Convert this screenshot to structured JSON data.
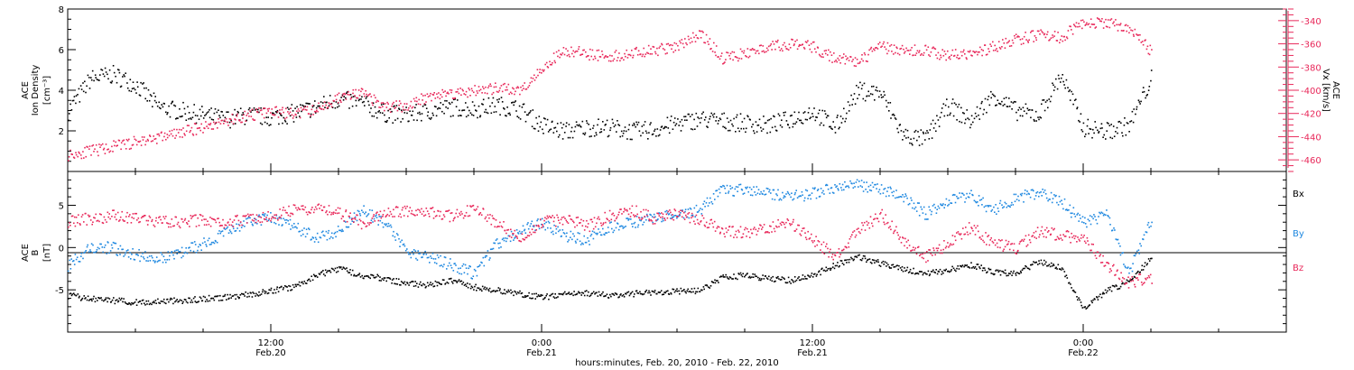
{
  "figure": {
    "xlabel": "hours:minutes, Feb. 20, 2010 - Feb. 22, 2010",
    "x_ticks": [
      {
        "time": "12:00",
        "date": "Feb.20"
      },
      {
        "time": "0:00",
        "date": "Feb.21"
      },
      {
        "time": "12:00",
        "date": "Feb.21"
      },
      {
        "time": "0:00",
        "date": "Feb.22"
      }
    ]
  },
  "colors": {
    "black": "#000000",
    "red": "#e8285a",
    "blue": "#1f88e0"
  },
  "chart_data": [
    {
      "type": "scatter",
      "panel": "top",
      "title": "",
      "xlim": [
        "2010-02-20 03:00",
        "2010-02-22 09:00"
      ],
      "ylabel_left": {
        "line1": "ACE",
        "line2": "Ion Density",
        "unit": "[cm⁻³]"
      },
      "ylabel_right": {
        "line1": "ACE",
        "line2": "Vx [km/s]"
      },
      "ylim_left": [
        0,
        8
      ],
      "ylim_right": [
        -470,
        -330
      ],
      "left_ticks": [
        "2",
        "4",
        "6",
        "8"
      ],
      "right_ticks": [
        "-340",
        "-360",
        "-380",
        "-400",
        "-420",
        "-440",
        "-460"
      ],
      "series": [
        {
          "key": "density",
          "axis": "left",
          "color": "black",
          "x": [
            "2010-02-20 03:00",
            "2010-02-20 04:00",
            "2010-02-20 05:00",
            "2010-02-20 06:00",
            "2010-02-20 07:00",
            "2010-02-20 08:00",
            "2010-02-20 09:00",
            "2010-02-20 10:00",
            "2010-02-20 11:00",
            "2010-02-20 12:00",
            "2010-02-20 13:00",
            "2010-02-20 14:00",
            "2010-02-20 15:00",
            "2010-02-20 16:00",
            "2010-02-20 17:00",
            "2010-02-20 18:00",
            "2010-02-20 19:00",
            "2010-02-20 20:00",
            "2010-02-20 21:00",
            "2010-02-20 22:00",
            "2010-02-20 23:00",
            "2010-02-21 00:00",
            "2010-02-21 01:00",
            "2010-02-21 02:00",
            "2010-02-21 03:00",
            "2010-02-21 04:00",
            "2010-02-21 05:00",
            "2010-02-21 06:00",
            "2010-02-21 07:00",
            "2010-02-21 08:00",
            "2010-02-21 09:00",
            "2010-02-21 10:00",
            "2010-02-21 11:00",
            "2010-02-21 12:00",
            "2010-02-21 13:00",
            "2010-02-21 14:00",
            "2010-02-21 15:00",
            "2010-02-21 16:00",
            "2010-02-21 17:00",
            "2010-02-21 18:00",
            "2010-02-21 19:00",
            "2010-02-21 20:00",
            "2010-02-21 21:00",
            "2010-02-21 22:00",
            "2010-02-21 23:00",
            "2010-02-22 00:00",
            "2010-02-22 01:00",
            "2010-02-22 02:00",
            "2010-02-22 03:00"
          ],
          "y": [
            3.0,
            4.6,
            4.8,
            4.3,
            3.2,
            3.0,
            2.8,
            2.6,
            2.8,
            2.7,
            2.9,
            3.2,
            3.6,
            3.4,
            2.9,
            2.8,
            3.0,
            3.2,
            3.1,
            3.3,
            3.1,
            2.3,
            2.0,
            2.2,
            2.2,
            2.0,
            2.1,
            2.4,
            2.6,
            2.5,
            2.4,
            2.3,
            2.6,
            3.0,
            2.2,
            4.0,
            3.9,
            1.8,
            1.6,
            3.3,
            2.5,
            3.8,
            3.0,
            2.8,
            4.8,
            2.2,
            2.0,
            2.3,
            4.6
          ]
        },
        {
          "key": "vx",
          "axis": "right",
          "color": "red",
          "x": [
            "2010-02-20 03:00",
            "2010-02-20 04:00",
            "2010-02-20 05:00",
            "2010-02-20 06:00",
            "2010-02-20 07:00",
            "2010-02-20 08:00",
            "2010-02-20 09:00",
            "2010-02-20 10:00",
            "2010-02-20 11:00",
            "2010-02-20 12:00",
            "2010-02-20 13:00",
            "2010-02-20 14:00",
            "2010-02-20 15:00",
            "2010-02-20 16:00",
            "2010-02-20 17:00",
            "2010-02-20 18:00",
            "2010-02-20 19:00",
            "2010-02-20 20:00",
            "2010-02-20 21:00",
            "2010-02-20 22:00",
            "2010-02-20 23:00",
            "2010-02-21 00:00",
            "2010-02-21 01:00",
            "2010-02-21 02:00",
            "2010-02-21 03:00",
            "2010-02-21 04:00",
            "2010-02-21 05:00",
            "2010-02-21 06:00",
            "2010-02-21 07:00",
            "2010-02-21 08:00",
            "2010-02-21 09:00",
            "2010-02-21 10:00",
            "2010-02-21 11:00",
            "2010-02-21 12:00",
            "2010-02-21 13:00",
            "2010-02-21 14:00",
            "2010-02-21 15:00",
            "2010-02-21 16:00",
            "2010-02-21 17:00",
            "2010-02-21 18:00",
            "2010-02-21 19:00",
            "2010-02-21 20:00",
            "2010-02-21 21:00",
            "2010-02-21 22:00",
            "2010-02-21 23:00",
            "2010-02-22 00:00",
            "2010-02-22 01:00",
            "2010-02-22 02:00",
            "2010-02-22 03:00"
          ],
          "y": [
            -455,
            -452,
            -448,
            -444,
            -440,
            -436,
            -431,
            -426,
            -421,
            -418,
            -420,
            -416,
            -406,
            -402,
            -414,
            -413,
            -404,
            -402,
            -400,
            -398,
            -400,
            -380,
            -365,
            -368,
            -370,
            -368,
            -365,
            -362,
            -350,
            -372,
            -368,
            -362,
            -360,
            -362,
            -372,
            -375,
            -362,
            -366,
            -365,
            -370,
            -368,
            -362,
            -356,
            -352,
            -354,
            -340,
            -342,
            -346,
            -366
          ]
        }
      ]
    },
    {
      "type": "scatter",
      "panel": "bottom",
      "title": "",
      "xlim": [
        "2010-02-20 03:00",
        "2010-02-22 09:00"
      ],
      "ylabel_left": {
        "line1": "ACE",
        "line2": "B",
        "unit": "[nT]"
      },
      "ylim": [
        -10,
        9
      ],
      "left_ticks": [
        "-5",
        "0",
        "5"
      ],
      "zero_line": true,
      "legend": {
        "placement": "right",
        "entries": [
          "Bx",
          "By",
          "Bz"
        ]
      },
      "series": [
        {
          "key": "bx",
          "name": "Bx",
          "color": "black",
          "x": [
            "2010-02-20 03:00",
            "2010-02-20 04:00",
            "2010-02-20 05:00",
            "2010-02-20 06:00",
            "2010-02-20 07:00",
            "2010-02-20 08:00",
            "2010-02-20 09:00",
            "2010-02-20 10:00",
            "2010-02-20 11:00",
            "2010-02-20 12:00",
            "2010-02-20 13:00",
            "2010-02-20 14:00",
            "2010-02-20 15:00",
            "2010-02-20 16:00",
            "2010-02-20 17:00",
            "2010-02-20 18:00",
            "2010-02-20 19:00",
            "2010-02-20 20:00",
            "2010-02-20 21:00",
            "2010-02-20 22:00",
            "2010-02-20 23:00",
            "2010-02-21 00:00",
            "2010-02-21 01:00",
            "2010-02-21 02:00",
            "2010-02-21 03:00",
            "2010-02-21 04:00",
            "2010-02-21 05:00",
            "2010-02-21 06:00",
            "2010-02-21 07:00",
            "2010-02-21 08:00",
            "2010-02-21 09:00",
            "2010-02-21 10:00",
            "2010-02-21 11:00",
            "2010-02-21 12:00",
            "2010-02-21 13:00",
            "2010-02-21 14:00",
            "2010-02-21 15:00",
            "2010-02-21 16:00",
            "2010-02-21 17:00",
            "2010-02-21 18:00",
            "2010-02-21 19:00",
            "2010-02-21 20:00",
            "2010-02-21 21:00",
            "2010-02-21 22:00",
            "2010-02-21 23:00",
            "2010-02-22 00:00",
            "2010-02-22 01:00",
            "2010-02-22 02:00",
            "2010-02-22 03:00"
          ],
          "y": [
            -5.6,
            -6.0,
            -6.2,
            -6.4,
            -6.3,
            -6.2,
            -6.0,
            -5.8,
            -5.5,
            -5.0,
            -4.6,
            -3.2,
            -2.4,
            -3.2,
            -3.6,
            -4.2,
            -4.4,
            -3.8,
            -4.6,
            -5.0,
            -5.4,
            -5.8,
            -5.5,
            -5.3,
            -5.6,
            -5.4,
            -5.2,
            -5.1,
            -5.0,
            -3.5,
            -3.2,
            -3.6,
            -3.8,
            -3.2,
            -2.0,
            -1.0,
            -1.8,
            -2.5,
            -3.0,
            -2.6,
            -2.0,
            -2.8,
            -3.0,
            -1.6,
            -2.4,
            -7.2,
            -5.0,
            -4.0,
            -1.2
          ]
        },
        {
          "key": "by",
          "name": "By",
          "color": "blue",
          "x": [
            "2010-02-20 03:00",
            "2010-02-20 04:00",
            "2010-02-20 05:00",
            "2010-02-20 06:00",
            "2010-02-20 07:00",
            "2010-02-20 08:00",
            "2010-02-20 09:00",
            "2010-02-20 10:00",
            "2010-02-20 11:00",
            "2010-02-20 12:00",
            "2010-02-20 13:00",
            "2010-02-20 14:00",
            "2010-02-20 15:00",
            "2010-02-20 16:00",
            "2010-02-20 17:00",
            "2010-02-20 18:00",
            "2010-02-20 19:00",
            "2010-02-20 20:00",
            "2010-02-20 21:00",
            "2010-02-20 22:00",
            "2010-02-20 23:00",
            "2010-02-21 00:00",
            "2010-02-21 01:00",
            "2010-02-21 02:00",
            "2010-02-21 03:00",
            "2010-02-21 04:00",
            "2010-02-21 05:00",
            "2010-02-21 06:00",
            "2010-02-21 07:00",
            "2010-02-21 08:00",
            "2010-02-21 09:00",
            "2010-02-21 10:00",
            "2010-02-21 11:00",
            "2010-02-21 12:00",
            "2010-02-21 13:00",
            "2010-02-21 14:00",
            "2010-02-21 15:00",
            "2010-02-21 16:00",
            "2010-02-21 17:00",
            "2010-02-21 18:00",
            "2010-02-21 19:00",
            "2010-02-21 20:00",
            "2010-02-21 21:00",
            "2010-02-21 22:00",
            "2010-02-21 23:00",
            "2010-02-22 00:00",
            "2010-02-22 01:00",
            "2010-02-22 02:00",
            "2010-02-22 03:00"
          ],
          "y": [
            -2.0,
            0.2,
            0.0,
            -0.8,
            -1.2,
            -0.5,
            0.5,
            1.8,
            3.2,
            3.6,
            2.5,
            1.2,
            2.0,
            4.5,
            3.0,
            -0.5,
            -1.0,
            -2.0,
            -3.0,
            0.5,
            2.0,
            3.0,
            1.5,
            1.0,
            2.5,
            3.0,
            3.5,
            4.0,
            4.5,
            7.0,
            6.8,
            6.5,
            6.0,
            6.5,
            7.2,
            7.4,
            7.0,
            6.0,
            4.0,
            5.5,
            6.2,
            4.5,
            6.0,
            6.5,
            5.5,
            3.0,
            4.0,
            -3.0,
            3.5
          ]
        },
        {
          "key": "bz",
          "name": "Bz",
          "color": "red",
          "x": [
            "2010-02-20 03:00",
            "2010-02-20 04:00",
            "2010-02-20 05:00",
            "2010-02-20 06:00",
            "2010-02-20 07:00",
            "2010-02-20 08:00",
            "2010-02-20 09:00",
            "2010-02-20 10:00",
            "2010-02-20 11:00",
            "2010-02-20 12:00",
            "2010-02-20 13:00",
            "2010-02-20 14:00",
            "2010-02-20 15:00",
            "2010-02-20 16:00",
            "2010-02-20 17:00",
            "2010-02-20 18:00",
            "2010-02-20 19:00",
            "2010-02-20 20:00",
            "2010-02-20 21:00",
            "2010-02-20 22:00",
            "2010-02-20 23:00",
            "2010-02-21 00:00",
            "2010-02-21 01:00",
            "2010-02-21 02:00",
            "2010-02-21 03:00",
            "2010-02-21 04:00",
            "2010-02-21 05:00",
            "2010-02-21 06:00",
            "2010-02-21 07:00",
            "2010-02-21 08:00",
            "2010-02-21 09:00",
            "2010-02-21 10:00",
            "2010-02-21 11:00",
            "2010-02-21 12:00",
            "2010-02-21 13:00",
            "2010-02-21 14:00",
            "2010-02-21 15:00",
            "2010-02-21 16:00",
            "2010-02-21 17:00",
            "2010-02-21 18:00",
            "2010-02-21 19:00",
            "2010-02-21 20:00",
            "2010-02-21 21:00",
            "2010-02-21 22:00",
            "2010-02-21 23:00",
            "2010-02-22 00:00",
            "2010-02-22 01:00",
            "2010-02-22 02:00",
            "2010-02-22 03:00"
          ],
          "y": [
            3.2,
            3.5,
            3.8,
            3.6,
            3.2,
            3.0,
            3.4,
            3.0,
            3.6,
            3.8,
            4.5,
            4.8,
            4.2,
            3.0,
            4.0,
            4.5,
            4.2,
            3.8,
            4.6,
            3.0,
            1.2,
            3.0,
            3.5,
            2.6,
            3.8,
            4.5,
            3.5,
            4.0,
            3.4,
            2.0,
            1.8,
            2.5,
            3.0,
            1.0,
            -1.0,
            2.0,
            4.0,
            1.0,
            -1.0,
            0.5,
            2.5,
            0.5,
            0.0,
            2.0,
            1.5,
            1.0,
            -2.0,
            -4.0,
            -3.5
          ]
        }
      ]
    }
  ]
}
